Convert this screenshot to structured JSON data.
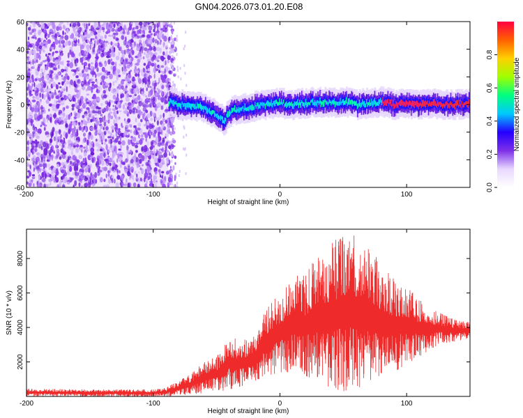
{
  "title": "GN04.2026.073.01.20.E08",
  "chart_data": [
    {
      "type": "heatmap",
      "xlabel": "Height of straight line (km)",
      "ylabel": "Frequency (Hz)",
      "xlim": [
        -200,
        150
      ],
      "ylim": [
        -60,
        60
      ],
      "x_ticks": [
        {
          "value": -200,
          "label": "-200"
        },
        {
          "value": -100,
          "label": "-100"
        },
        {
          "value": 0,
          "label": "0"
        },
        {
          "value": 100,
          "label": "100"
        }
      ],
      "y_ticks": [
        {
          "value": 60,
          "label": "60"
        },
        {
          "value": 40,
          "label": "40"
        },
        {
          "value": 20,
          "label": "20"
        },
        {
          "value": 0,
          "label": "0"
        },
        {
          "value": -20,
          "label": "-20"
        },
        {
          "value": -40,
          "label": "-40"
        },
        {
          "value": -60,
          "label": "-60"
        }
      ],
      "noise_region_x": [
        -200,
        -88
      ],
      "ridge_center_hz": [
        [
          -90,
          2
        ],
        [
          -80,
          0
        ],
        [
          -70,
          -1
        ],
        [
          -60,
          -2
        ],
        [
          -50,
          -8
        ],
        [
          -45,
          -12
        ],
        [
          -40,
          -5
        ],
        [
          -30,
          -3
        ],
        [
          -20,
          -1
        ],
        [
          -10,
          0
        ],
        [
          0,
          1
        ],
        [
          10,
          0
        ],
        [
          20,
          1
        ],
        [
          30,
          2
        ],
        [
          40,
          1
        ],
        [
          50,
          2
        ],
        [
          60,
          0
        ],
        [
          70,
          1
        ],
        [
          80,
          2
        ],
        [
          90,
          0
        ],
        [
          100,
          0
        ],
        [
          110,
          0
        ],
        [
          120,
          1
        ],
        [
          130,
          0
        ],
        [
          140,
          0
        ],
        [
          150,
          0
        ]
      ],
      "colorbar": {
        "label": "Normalized spectral amplitude",
        "range": [
          0,
          1
        ],
        "ticks": [
          {
            "value": 0.0,
            "label": "0.0"
          },
          {
            "value": 0.2,
            "label": "0.2"
          },
          {
            "value": 0.4,
            "label": "0.4"
          },
          {
            "value": 0.6,
            "label": "0.6"
          },
          {
            "value": 0.8,
            "label": "0.8"
          }
        ],
        "colors": [
          "#ffffff",
          "#e8d8ff",
          "#7d30e8",
          "#2400ff",
          "#00c8ff",
          "#00ff80",
          "#a0ff00",
          "#ffd000",
          "#ff6000",
          "#ff0040"
        ]
      }
    },
    {
      "type": "line",
      "xlabel": "Height of straight line (km)",
      "ylabel": "SNR (10 * v/v)",
      "xlim": [
        -200,
        150
      ],
      "ylim": [
        0,
        9700
      ],
      "x_ticks": [
        {
          "value": -200,
          "label": "-200"
        },
        {
          "value": -100,
          "label": "-100"
        },
        {
          "value": 0,
          "label": "0"
        },
        {
          "value": 100,
          "label": "100"
        }
      ],
      "y_ticks": [
        {
          "value": 2000,
          "label": "2000"
        },
        {
          "value": 4000,
          "label": "4000"
        },
        {
          "value": 6000,
          "label": "6000"
        },
        {
          "value": 8000,
          "label": "8000"
        }
      ],
      "line_color": "#ee2a2a",
      "series": [
        {
          "name": "SNR",
          "envelope": [
            {
              "x": -200,
              "low": 0,
              "high": 450
            },
            {
              "x": -150,
              "low": 0,
              "high": 400
            },
            {
              "x": -100,
              "low": 0,
              "high": 400
            },
            {
              "x": -90,
              "low": 0,
              "high": 500
            },
            {
              "x": -80,
              "low": 50,
              "high": 900
            },
            {
              "x": -70,
              "low": 100,
              "high": 1300
            },
            {
              "x": -60,
              "low": 200,
              "high": 2000
            },
            {
              "x": -50,
              "low": 300,
              "high": 2300
            },
            {
              "x": -45,
              "low": 300,
              "high": 2800
            },
            {
              "x": -40,
              "low": 400,
              "high": 3500
            },
            {
              "x": -30,
              "low": 600,
              "high": 3200
            },
            {
              "x": -20,
              "low": 900,
              "high": 3600
            },
            {
              "x": -10,
              "low": 1200,
              "high": 5200
            },
            {
              "x": 0,
              "low": 1400,
              "high": 6000
            },
            {
              "x": 10,
              "low": 1400,
              "high": 7000
            },
            {
              "x": 20,
              "low": 1200,
              "high": 7000
            },
            {
              "x": 30,
              "low": 900,
              "high": 8300
            },
            {
              "x": 40,
              "low": 500,
              "high": 8800
            },
            {
              "x": 50,
              "low": 300,
              "high": 9500
            },
            {
              "x": 60,
              "low": 500,
              "high": 9300
            },
            {
              "x": 70,
              "low": 600,
              "high": 8800
            },
            {
              "x": 80,
              "low": 1000,
              "high": 7600
            },
            {
              "x": 90,
              "low": 1400,
              "high": 6800
            },
            {
              "x": 100,
              "low": 1900,
              "high": 6400
            },
            {
              "x": 110,
              "low": 2300,
              "high": 5600
            },
            {
              "x": 120,
              "low": 2800,
              "high": 5100
            },
            {
              "x": 130,
              "low": 3100,
              "high": 4700
            },
            {
              "x": 140,
              "low": 3200,
              "high": 4400
            },
            {
              "x": 150,
              "low": 3400,
              "high": 4300
            }
          ]
        }
      ]
    }
  ]
}
